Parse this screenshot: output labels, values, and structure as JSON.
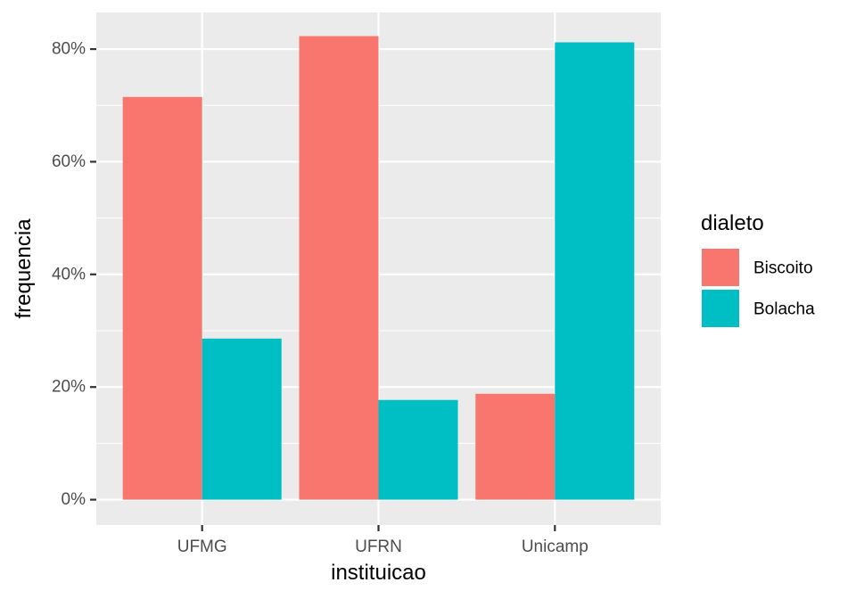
{
  "chart_data": {
    "type": "bar",
    "title": "",
    "xlabel": "instituicao",
    "ylabel": "frequencia",
    "categories": [
      "UFMG",
      "UFRN",
      "Unicamp"
    ],
    "series": [
      {
        "name": "Biscoito",
        "color": "#F8766D",
        "values": [
          0.715,
          0.823,
          0.188
        ]
      },
      {
        "name": "Bolacha",
        "color": "#00BFC4",
        "values": [
          0.286,
          0.177,
          0.812
        ]
      }
    ],
    "ylim": [
      -0.045,
      0.865
    ],
    "yticks": [
      0,
      0.2,
      0.4,
      0.6,
      0.8
    ],
    "ytick_labels": [
      "0%",
      "20%",
      "40%",
      "60%",
      "80%"
    ],
    "y_format": "percent",
    "grid": true,
    "legend": {
      "title": "dialeto",
      "position": "right"
    },
    "panel_background": "#EBEBEB",
    "grid_color": "#FFFFFF"
  }
}
